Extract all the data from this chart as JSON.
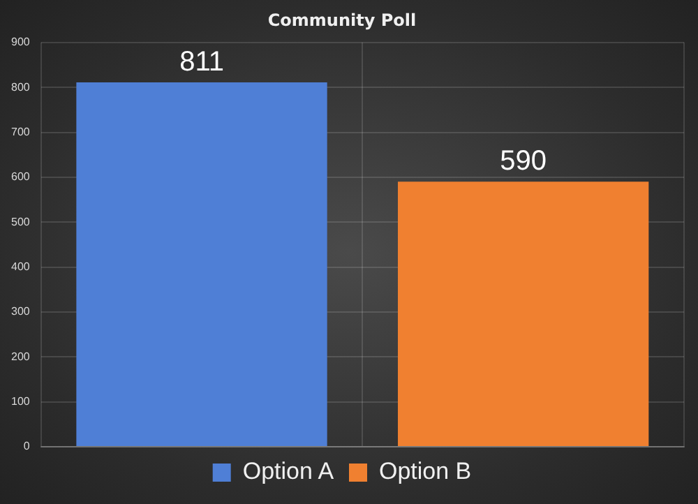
{
  "chart_data": {
    "type": "bar",
    "title": "Community Poll",
    "categories": [
      null,
      null
    ],
    "series": [
      {
        "name": "Option A",
        "color": "#4f7fd6",
        "values": [
          811,
          null
        ]
      },
      {
        "name": "Option B",
        "color": "#f08030",
        "values": [
          null,
          590
        ]
      }
    ],
    "ylim": [
      0,
      900
    ],
    "yticks": [
      0,
      100,
      200,
      300,
      400,
      500,
      600,
      700,
      800,
      900
    ],
    "grid": true,
    "legend": "bottom",
    "tick_labels": "y",
    "data_labels": true
  }
}
